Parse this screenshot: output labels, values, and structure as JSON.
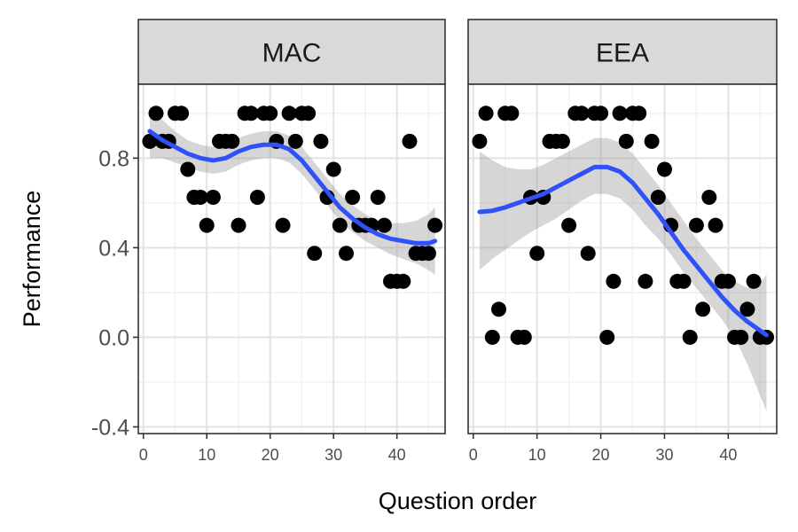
{
  "chart_data": {
    "type": "scatter",
    "xlabel": "Question order",
    "ylabel": "Performance",
    "xlim": [
      -0.8,
      47.6
    ],
    "ylim": [
      -0.43,
      1.13
    ],
    "x_ticks": [
      0,
      10,
      20,
      30,
      40
    ],
    "x_tick_labels": [
      "0",
      "10",
      "20",
      "30",
      "40"
    ],
    "y_ticks": [
      -0.4,
      0.0,
      0.4,
      0.8
    ],
    "y_tick_labels": [
      "-0.4",
      "0.0",
      "0.4",
      "0.8"
    ],
    "grid": true,
    "colors": {
      "points": "#000000",
      "smooth_line": "#3050f8",
      "ribbon": "#999999",
      "strip": "#d9d9d9"
    },
    "panels": [
      {
        "label": "MAC",
        "points": [
          [
            1,
            0.875
          ],
          [
            2,
            1.0
          ],
          [
            3,
            0.875
          ],
          [
            4,
            0.875
          ],
          [
            5,
            1.0
          ],
          [
            6,
            1.0
          ],
          [
            7,
            0.75
          ],
          [
            8,
            0.625
          ],
          [
            9,
            0.625
          ],
          [
            10,
            0.5
          ],
          [
            11,
            0.625
          ],
          [
            12,
            0.875
          ],
          [
            13,
            0.875
          ],
          [
            14,
            0.875
          ],
          [
            15,
            0.5
          ],
          [
            16,
            1.0
          ],
          [
            17,
            1.0
          ],
          [
            18,
            0.625
          ],
          [
            19,
            1.0
          ],
          [
            20,
            1.0
          ],
          [
            21,
            0.875
          ],
          [
            22,
            0.5
          ],
          [
            23,
            1.0
          ],
          [
            24,
            0.875
          ],
          [
            25,
            1.0
          ],
          [
            26,
            1.0
          ],
          [
            27,
            0.375
          ],
          [
            28,
            0.875
          ],
          [
            29,
            0.625
          ],
          [
            30,
            0.75
          ],
          [
            31,
            0.5
          ],
          [
            32,
            0.375
          ],
          [
            33,
            0.625
          ],
          [
            34,
            0.5
          ],
          [
            35,
            0.5
          ],
          [
            36,
            0.5
          ],
          [
            37,
            0.625
          ],
          [
            38,
            0.5
          ],
          [
            39,
            0.25
          ],
          [
            40,
            0.25
          ],
          [
            41,
            0.25
          ],
          [
            42,
            0.875
          ],
          [
            43,
            0.375
          ],
          [
            44,
            0.375
          ],
          [
            45,
            0.375
          ],
          [
            46,
            0.5
          ]
        ],
        "smooth": {
          "x": [
            1,
            3,
            5,
            7,
            9,
            11,
            13,
            15,
            17,
            19,
            21,
            23,
            25,
            27,
            29,
            31,
            33,
            35,
            37,
            39,
            41,
            43,
            45,
            46
          ],
          "y": [
            0.92,
            0.88,
            0.85,
            0.82,
            0.8,
            0.79,
            0.8,
            0.83,
            0.85,
            0.86,
            0.86,
            0.84,
            0.79,
            0.72,
            0.65,
            0.58,
            0.53,
            0.49,
            0.46,
            0.44,
            0.43,
            0.42,
            0.42,
            0.43
          ],
          "lower": [
            0.8,
            0.8,
            0.78,
            0.76,
            0.74,
            0.73,
            0.74,
            0.77,
            0.79,
            0.8,
            0.8,
            0.78,
            0.73,
            0.66,
            0.59,
            0.52,
            0.47,
            0.43,
            0.4,
            0.37,
            0.35,
            0.33,
            0.3,
            0.28
          ],
          "upper": [
            1.03,
            0.97,
            0.92,
            0.88,
            0.86,
            0.85,
            0.86,
            0.89,
            0.91,
            0.92,
            0.92,
            0.9,
            0.85,
            0.78,
            0.71,
            0.64,
            0.59,
            0.55,
            0.52,
            0.51,
            0.51,
            0.52,
            0.55,
            0.58
          ]
        }
      },
      {
        "label": "EEA",
        "points": [
          [
            1,
            0.875
          ],
          [
            2,
            1.0
          ],
          [
            3,
            0.0
          ],
          [
            4,
            0.125
          ],
          [
            5,
            1.0
          ],
          [
            6,
            1.0
          ],
          [
            7,
            0.0
          ],
          [
            8,
            0.0
          ],
          [
            9,
            0.625
          ],
          [
            10,
            0.375
          ],
          [
            11,
            0.625
          ],
          [
            12,
            0.875
          ],
          [
            13,
            0.875
          ],
          [
            14,
            0.875
          ],
          [
            15,
            0.5
          ],
          [
            16,
            1.0
          ],
          [
            17,
            1.0
          ],
          [
            18,
            0.375
          ],
          [
            19,
            1.0
          ],
          [
            20,
            1.0
          ],
          [
            21,
            0.0
          ],
          [
            22,
            0.25
          ],
          [
            23,
            1.0
          ],
          [
            24,
            0.875
          ],
          [
            25,
            1.0
          ],
          [
            26,
            1.0
          ],
          [
            27,
            0.25
          ],
          [
            28,
            0.875
          ],
          [
            29,
            0.625
          ],
          [
            30,
            0.75
          ],
          [
            31,
            0.5
          ],
          [
            32,
            0.25
          ],
          [
            33,
            0.25
          ],
          [
            34,
            0.0
          ],
          [
            35,
            0.5
          ],
          [
            36,
            0.125
          ],
          [
            37,
            0.625
          ],
          [
            38,
            0.5
          ],
          [
            39,
            0.25
          ],
          [
            40,
            0.25
          ],
          [
            41,
            0.0
          ],
          [
            42,
            0.0
          ],
          [
            43,
            0.125
          ],
          [
            44,
            0.25
          ],
          [
            45,
            0.0
          ],
          [
            46,
            0.0
          ]
        ],
        "smooth": {
          "x": [
            1,
            3,
            5,
            7,
            9,
            11,
            13,
            15,
            17,
            19,
            21,
            23,
            25,
            27,
            29,
            31,
            33,
            35,
            37,
            39,
            41,
            43,
            45,
            46
          ],
          "y": [
            0.56,
            0.565,
            0.58,
            0.6,
            0.62,
            0.64,
            0.67,
            0.7,
            0.73,
            0.76,
            0.76,
            0.74,
            0.69,
            0.62,
            0.55,
            0.47,
            0.39,
            0.32,
            0.25,
            0.18,
            0.12,
            0.07,
            0.03,
            0.01
          ],
          "lower": [
            0.3,
            0.35,
            0.39,
            0.43,
            0.47,
            0.5,
            0.53,
            0.57,
            0.61,
            0.64,
            0.64,
            0.62,
            0.57,
            0.5,
            0.44,
            0.37,
            0.29,
            0.22,
            0.15,
            0.08,
            0.0,
            -0.12,
            -0.26,
            -0.33
          ],
          "upper": [
            0.83,
            0.79,
            0.76,
            0.75,
            0.75,
            0.77,
            0.8,
            0.83,
            0.86,
            0.89,
            0.89,
            0.87,
            0.82,
            0.75,
            0.68,
            0.6,
            0.52,
            0.44,
            0.37,
            0.3,
            0.25,
            0.22,
            0.24,
            0.28
          ]
        }
      }
    ]
  }
}
